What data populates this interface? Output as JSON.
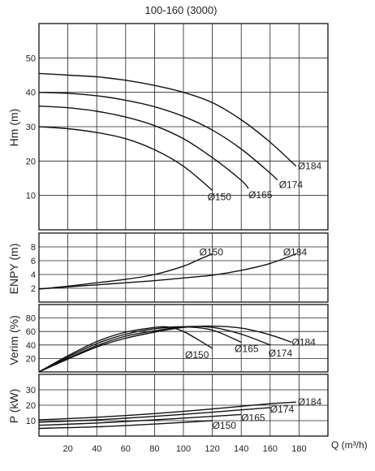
{
  "title": "100-160 (3000)",
  "x_axis_label": "Q (m³/h)",
  "x_ticks": [
    "20",
    "40",
    "60",
    "80",
    "100",
    "120",
    "140",
    "160",
    "180"
  ],
  "chart_data": [
    {
      "type": "line",
      "ylabel": "Hm (m)",
      "xlim": [
        0,
        200
      ],
      "ylim": [
        0,
        60
      ],
      "y_ticks": [
        "10",
        "20",
        "30",
        "40",
        "50"
      ],
      "series": [
        {
          "name": "Ø150",
          "x": [
            0,
            20,
            40,
            60,
            80,
            100,
            120
          ],
          "y": [
            30,
            29.4,
            28.3,
            26.5,
            23.3,
            18.5,
            11.5
          ]
        },
        {
          "name": "Ø165",
          "x": [
            0,
            20,
            40,
            60,
            80,
            100,
            120,
            140,
            145
          ],
          "y": [
            36,
            35.5,
            34.5,
            32.8,
            30.3,
            26.5,
            21,
            14.4,
            12
          ]
        },
        {
          "name": "Ø174",
          "x": [
            0,
            20,
            40,
            60,
            80,
            100,
            120,
            140,
            160,
            165
          ],
          "y": [
            40,
            39.7,
            39,
            37.7,
            35.8,
            33,
            29,
            23.5,
            16.5,
            14.5
          ]
        },
        {
          "name": "Ø184",
          "x": [
            0,
            20,
            40,
            60,
            80,
            100,
            120,
            140,
            160,
            178
          ],
          "y": [
            45.5,
            45,
            44.5,
            43.5,
            42,
            40,
            37,
            32,
            25.5,
            18.5
          ]
        }
      ]
    },
    {
      "type": "line",
      "ylabel": "ENPY (m)",
      "xlim": [
        0,
        200
      ],
      "ylim": [
        0,
        10
      ],
      "y_ticks": [
        "2",
        "4",
        "6",
        "8"
      ],
      "series": [
        {
          "name": "Ø150",
          "x": [
            0,
            20,
            40,
            60,
            80,
            100,
            110,
            120
          ],
          "y": [
            1.9,
            2.3,
            2.8,
            3.3,
            4,
            5.2,
            6.1,
            7
          ]
        },
        {
          "name": "Ø184",
          "x": [
            0,
            20,
            40,
            60,
            80,
            100,
            120,
            140,
            160,
            178
          ],
          "y": [
            1.9,
            2.2,
            2.5,
            2.8,
            3.1,
            3.5,
            3.9,
            4.6,
            5.6,
            7
          ]
        }
      ]
    },
    {
      "type": "line",
      "ylabel": "Verim (%)",
      "xlim": [
        0,
        200
      ],
      "ylim": [
        0,
        100
      ],
      "y_ticks": [
        "20",
        "40",
        "60",
        "80"
      ],
      "series": [
        {
          "name": "Ø150",
          "x": [
            0,
            20,
            40,
            60,
            80,
            90,
            100,
            110,
            120
          ],
          "y": [
            0,
            24,
            45,
            59,
            66,
            66.5,
            60,
            48,
            35
          ]
        },
        {
          "name": "Ø165",
          "x": [
            0,
            20,
            40,
            60,
            80,
            100,
            120,
            140
          ],
          "y": [
            0,
            22,
            42,
            56,
            64,
            67,
            62,
            44
          ]
        },
        {
          "name": "Ø174",
          "x": [
            0,
            20,
            40,
            60,
            80,
            100,
            120,
            140,
            160
          ],
          "y": [
            0,
            20,
            39,
            53,
            61,
            67,
            66,
            56,
            40
          ]
        },
        {
          "name": "Ø184",
          "x": [
            0,
            20,
            40,
            60,
            80,
            100,
            120,
            140,
            160,
            175
          ],
          "y": [
            0,
            19,
            37,
            50,
            59,
            66,
            68,
            65,
            55,
            44
          ]
        }
      ]
    },
    {
      "type": "line",
      "ylabel": "P (kW)",
      "xlim": [
        0,
        200
      ],
      "ylim": [
        0,
        40
      ],
      "y_ticks": [
        "10",
        "20",
        "30"
      ],
      "series": [
        {
          "name": "Ø150",
          "x": [
            0,
            40,
            80,
            120
          ],
          "y": [
            5,
            6,
            7.8,
            10
          ]
        },
        {
          "name": "Ø165",
          "x": [
            0,
            40,
            80,
            120,
            140
          ],
          "y": [
            7,
            8.5,
            10.5,
            12.8,
            14
          ]
        },
        {
          "name": "Ø174",
          "x": [
            0,
            40,
            80,
            120,
            160
          ],
          "y": [
            9,
            10.5,
            12.8,
            15.5,
            18.5
          ]
        },
        {
          "name": "Ø184",
          "x": [
            0,
            40,
            80,
            120,
            160,
            178
          ],
          "y": [
            10.5,
            12.2,
            14.6,
            17.6,
            21,
            22
          ]
        }
      ]
    }
  ]
}
